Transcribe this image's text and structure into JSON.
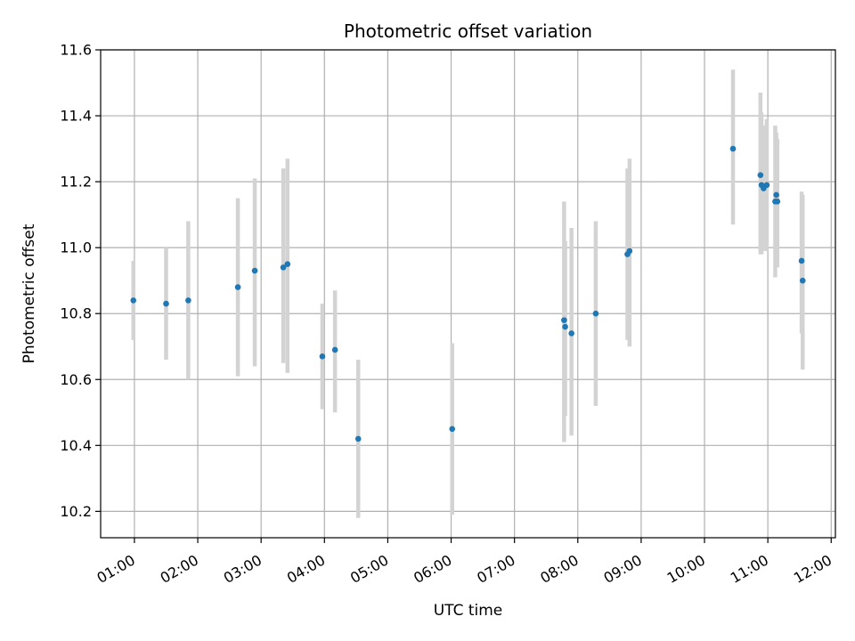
{
  "chart_data": {
    "type": "scatter",
    "title": "Photometric offset variation",
    "xlabel": "UTC time",
    "ylabel": "Photometric offset",
    "x_unit": "UTC time (HH:MM)",
    "xlim": [
      "00:28",
      "12:04"
    ],
    "ylim": [
      10.12,
      11.6
    ],
    "x_ticks": [
      "01:00",
      "02:00",
      "03:00",
      "04:00",
      "05:00",
      "06:00",
      "07:00",
      "08:00",
      "09:00",
      "10:00",
      "11:00",
      "12:00"
    ],
    "y_ticks": [
      "10.2",
      "10.4",
      "10.6",
      "10.8",
      "11.0",
      "11.2",
      "11.4",
      "11.6"
    ],
    "grid": true,
    "legend": "none",
    "colors": {
      "point": "#1f77b4",
      "errorbar": "#d3d3d3",
      "grid": "#b0b0b0"
    },
    "points": [
      {
        "x": "00:59",
        "y": 10.84,
        "ylow": 10.72,
        "yhigh": 10.96
      },
      {
        "x": "01:30",
        "y": 10.83,
        "ylow": 10.66,
        "yhigh": 11.0
      },
      {
        "x": "01:51",
        "y": 10.84,
        "ylow": 10.6,
        "yhigh": 11.08
      },
      {
        "x": "02:38",
        "y": 10.88,
        "ylow": 10.61,
        "yhigh": 11.15
      },
      {
        "x": "02:54",
        "y": 10.93,
        "ylow": 10.64,
        "yhigh": 11.21
      },
      {
        "x": "03:21",
        "y": 10.94,
        "ylow": 10.65,
        "yhigh": 11.24
      },
      {
        "x": "03:25",
        "y": 10.95,
        "ylow": 10.62,
        "yhigh": 11.27
      },
      {
        "x": "03:58",
        "y": 10.67,
        "ylow": 10.51,
        "yhigh": 10.83
      },
      {
        "x": "04:10",
        "y": 10.69,
        "ylow": 10.5,
        "yhigh": 10.87
      },
      {
        "x": "04:32",
        "y": 10.42,
        "ylow": 10.18,
        "yhigh": 10.66
      },
      {
        "x": "06:01",
        "y": 10.45,
        "ylow": 10.19,
        "yhigh": 10.71
      },
      {
        "x": "07:47",
        "y": 10.78,
        "ylow": 10.41,
        "yhigh": 11.14
      },
      {
        "x": "07:48",
        "y": 10.76,
        "ylow": 10.49,
        "yhigh": 11.02
      },
      {
        "x": "07:54",
        "y": 10.74,
        "ylow": 10.43,
        "yhigh": 11.06
      },
      {
        "x": "08:17",
        "y": 10.8,
        "ylow": 10.52,
        "yhigh": 11.08
      },
      {
        "x": "08:47",
        "y": 10.98,
        "ylow": 10.72,
        "yhigh": 11.24
      },
      {
        "x": "08:49",
        "y": 10.99,
        "ylow": 10.7,
        "yhigh": 11.27
      },
      {
        "x": "10:27",
        "y": 11.3,
        "ylow": 11.07,
        "yhigh": 11.54
      },
      {
        "x": "10:53",
        "y": 11.22,
        "ylow": 10.98,
        "yhigh": 11.47
      },
      {
        "x": "10:54",
        "y": 11.19,
        "ylow": 10.98,
        "yhigh": 11.41
      },
      {
        "x": "10:56",
        "y": 11.18,
        "ylow": 10.99,
        "yhigh": 11.37
      },
      {
        "x": "10:59",
        "y": 11.19,
        "ylow": 10.99,
        "yhigh": 11.39
      },
      {
        "x": "11:07",
        "y": 11.14,
        "ylow": 10.91,
        "yhigh": 11.37
      },
      {
        "x": "11:08",
        "y": 11.16,
        "ylow": 10.97,
        "yhigh": 11.35
      },
      {
        "x": "11:09",
        "y": 11.14,
        "ylow": 10.94,
        "yhigh": 11.33
      },
      {
        "x": "11:32",
        "y": 10.96,
        "ylow": 10.74,
        "yhigh": 11.17
      },
      {
        "x": "11:33",
        "y": 10.9,
        "ylow": 10.63,
        "yhigh": 11.16
      }
    ]
  }
}
